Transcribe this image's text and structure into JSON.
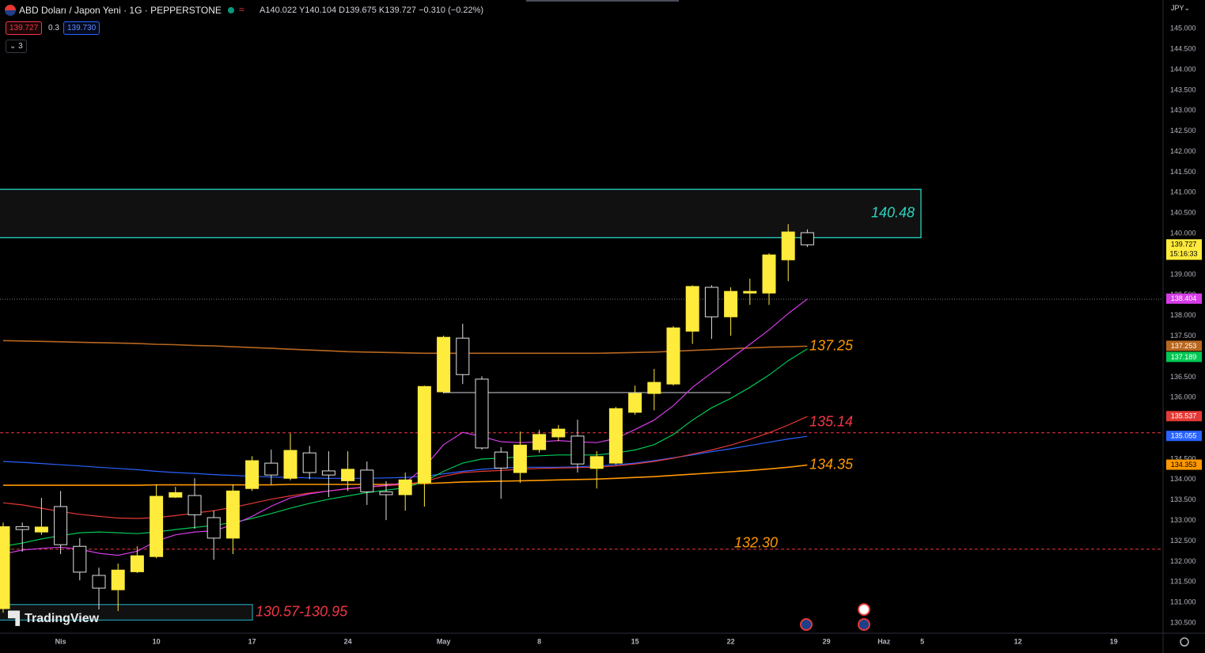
{
  "chart_data": {
    "type": "candlestick",
    "categories": [
      null,
      null,
      null,
      "Nis",
      null,
      null,
      null,
      null,
      "10",
      null,
      null,
      null,
      null,
      "17",
      null,
      null,
      null,
      null,
      "24",
      null,
      null,
      null,
      null,
      "May",
      null,
      null,
      null,
      null,
      "8",
      null,
      null,
      null,
      null,
      "15",
      null,
      null,
      null,
      null,
      "22",
      null,
      null,
      null,
      null,
      "29",
      null,
      null,
      "Haz",
      null,
      "5",
      null,
      null,
      null,
      null,
      "12",
      null,
      null,
      null,
      null,
      "19"
    ],
    "open": [
      130.85,
      132.85,
      132.72,
      133.34,
      132.37,
      131.66,
      131.31,
      131.75,
      132.12,
      133.57,
      133.61,
      133.07,
      132.57,
      133.78,
      134.4,
      134.03,
      134.65,
      134.21,
      133.97,
      134.23,
      133.7,
      133.63,
      133.92,
      136.14,
      137.45,
      136.45,
      134.67,
      134.17,
      134.73,
      135.04,
      135.06,
      134.27,
      134.4,
      135.64,
      136.1,
      136.33,
      137.62,
      138.69,
      137.97,
      138.55,
      138.55,
      139.36,
      140.022,
      null,
      null,
      null,
      null,
      null,
      null,
      null,
      null,
      null,
      null,
      null,
      null,
      null,
      null,
      null,
      null
    ],
    "high": [
      132.95,
      132.95,
      133.55,
      133.72,
      132.57,
      131.85,
      131.95,
      132.37,
      133.88,
      133.82,
      134.03,
      133.24,
      133.88,
      134.57,
      134.73,
      135.13,
      134.82,
      134.69,
      134.69,
      134.44,
      133.96,
      134.17,
      136.29,
      137.51,
      137.8,
      136.52,
      134.79,
      135.17,
      135.21,
      135.33,
      135.46,
      134.69,
      135.77,
      136.29,
      136.7,
      137.74,
      138.74,
      138.74,
      138.69,
      138.9,
      139.52,
      140.23,
      140.104,
      null,
      null,
      null,
      null,
      null,
      null,
      null,
      null,
      null,
      null,
      null,
      null,
      null,
      null,
      null,
      null
    ],
    "low": [
      130.75,
      132.24,
      132.65,
      132.18,
      131.54,
      130.83,
      130.79,
      131.72,
      132.08,
      133.55,
      132.8,
      132.04,
      132.18,
      133.72,
      133.88,
      133.98,
      134.01,
      133.57,
      133.72,
      133.38,
      133.01,
      133.24,
      133.34,
      136.1,
      136.33,
      134.73,
      133.53,
      133.92,
      134.65,
      134.94,
      134.17,
      133.78,
      134.36,
      135.58,
      135.69,
      136.29,
      137.31,
      137.43,
      137.51,
      138.26,
      138.26,
      138.84,
      139.675,
      null,
      null,
      null,
      null,
      null,
      null,
      null,
      null,
      null,
      null,
      null,
      null,
      null,
      null,
      null,
      null
    ],
    "close": [
      132.85,
      132.78,
      132.84,
      132.41,
      131.74,
      131.35,
      131.79,
      132.14,
      133.59,
      133.68,
      133.14,
      132.57,
      133.72,
      134.46,
      134.11,
      134.71,
      134.17,
      134.11,
      134.25,
      133.7,
      133.63,
      133.99,
      136.27,
      137.47,
      136.56,
      134.77,
      134.28,
      134.84,
      135.1,
      135.23,
      134.38,
      134.56,
      135.73,
      136.1,
      136.37,
      137.7,
      138.71,
      137.97,
      138.59,
      138.59,
      139.48,
      140.04,
      139.727,
      null,
      null,
      null,
      null,
      null,
      null,
      null,
      null,
      null,
      null,
      null,
      null,
      null,
      null,
      null,
      null
    ],
    "up_color": "#ffeb3b",
    "down_color": "#000000",
    "down_border": "#e0e0e0",
    "last_label": "139.727",
    "countdown": "15:16:33",
    "lines": [
      {
        "color": "#b8671f",
        "badge": "137.253",
        "values": [
          137.39,
          137.38,
          137.37,
          137.36,
          137.35,
          137.34,
          137.33,
          137.32,
          137.3,
          137.29,
          137.27,
          137.26,
          137.24,
          137.22,
          137.2,
          137.18,
          137.16,
          137.14,
          137.12,
          137.11,
          137.1,
          137.09,
          137.08,
          137.08,
          137.08,
          137.08,
          137.08,
          137.08,
          137.08,
          137.08,
          137.08,
          137.08,
          137.09,
          137.1,
          137.11,
          137.13,
          137.15,
          137.17,
          137.19,
          137.21,
          137.23,
          137.24,
          137.253,
          null,
          null,
          null,
          null,
          null,
          null,
          null,
          null,
          null,
          null,
          null,
          null,
          null,
          null,
          null,
          null
        ]
      },
      {
        "color": "#ff9800",
        "badge": "134.353",
        "values": [
          133.86,
          133.86,
          133.86,
          133.86,
          133.86,
          133.86,
          133.86,
          133.86,
          133.87,
          133.87,
          133.87,
          133.87,
          133.87,
          133.87,
          133.87,
          133.88,
          133.88,
          133.88,
          133.88,
          133.88,
          133.88,
          133.89,
          133.9,
          133.92,
          133.94,
          133.95,
          133.96,
          133.97,
          133.98,
          133.99,
          134.0,
          134.01,
          134.03,
          134.05,
          134.07,
          134.1,
          134.13,
          134.16,
          134.19,
          134.22,
          134.26,
          134.3,
          134.353,
          null,
          null,
          null,
          null,
          null,
          null,
          null,
          null,
          null,
          null,
          null,
          null,
          null,
          null,
          null,
          null
        ]
      },
      {
        "color": "#2962ff",
        "badge": "135.055",
        "values": [
          134.44,
          134.42,
          134.39,
          134.36,
          134.33,
          134.3,
          134.27,
          134.24,
          134.2,
          134.17,
          134.15,
          134.12,
          134.1,
          134.08,
          134.06,
          134.05,
          134.04,
          134.03,
          134.03,
          134.03,
          134.04,
          134.05,
          134.08,
          134.14,
          134.2,
          134.25,
          134.28,
          134.3,
          134.3,
          134.3,
          134.31,
          134.33,
          134.36,
          134.4,
          134.46,
          134.53,
          134.6,
          134.68,
          134.75,
          134.83,
          134.91,
          134.99,
          135.055,
          null,
          null,
          null,
          null,
          null,
          null,
          null,
          null,
          null,
          null,
          null,
          null,
          null,
          null,
          null,
          null
        ]
      },
      {
        "color": "#e53935",
        "badge": "135.537",
        "values": [
          133.43,
          133.38,
          133.3,
          133.22,
          133.15,
          133.1,
          133.06,
          133.05,
          133.07,
          133.12,
          133.18,
          133.24,
          133.32,
          133.42,
          133.52,
          133.6,
          133.67,
          133.72,
          133.77,
          133.81,
          133.85,
          133.88,
          133.95,
          134.08,
          134.17,
          134.2,
          134.22,
          134.25,
          134.27,
          134.28,
          134.29,
          134.3,
          134.33,
          134.38,
          134.44,
          134.52,
          134.62,
          134.72,
          134.84,
          134.98,
          135.14,
          135.33,
          135.537,
          null,
          null,
          null,
          null,
          null,
          null,
          null,
          null,
          null,
          null,
          null,
          null,
          null,
          null,
          null,
          null
        ]
      },
      {
        "color": "#00c853",
        "badge": "137.189",
        "values": [
          132.37,
          132.45,
          132.55,
          132.63,
          132.7,
          132.72,
          132.7,
          132.68,
          132.72,
          132.78,
          132.83,
          132.88,
          132.95,
          133.05,
          133.17,
          133.3,
          133.42,
          133.52,
          133.6,
          133.68,
          133.74,
          133.8,
          133.95,
          134.2,
          134.4,
          134.5,
          134.52,
          134.55,
          134.58,
          134.6,
          134.6,
          134.6,
          134.65,
          134.72,
          134.85,
          135.1,
          135.45,
          135.75,
          135.98,
          136.25,
          136.55,
          136.9,
          137.189,
          null,
          null,
          null,
          null,
          null,
          null,
          null,
          null,
          null,
          null,
          null,
          null,
          null,
          null,
          null,
          null
        ]
      },
      {
        "color": "#d53ce8",
        "badge": "138.404",
        "values": [
          132.18,
          132.28,
          132.32,
          132.35,
          132.3,
          132.2,
          132.15,
          132.25,
          132.5,
          132.65,
          132.72,
          132.75,
          132.9,
          133.1,
          133.35,
          133.55,
          133.65,
          133.72,
          133.78,
          133.82,
          133.86,
          133.92,
          134.3,
          134.85,
          135.15,
          135.05,
          134.92,
          134.9,
          134.92,
          134.95,
          134.92,
          134.9,
          135.0,
          135.22,
          135.45,
          135.8,
          136.25,
          136.6,
          136.95,
          137.3,
          137.65,
          138.05,
          138.404,
          null,
          null,
          null,
          null,
          null,
          null,
          null,
          null,
          null,
          null,
          null,
          null,
          null,
          null,
          null,
          null
        ]
      }
    ],
    "zones": [
      {
        "label": "140.48",
        "low": 139.9,
        "high": 141.08,
        "color": "#2ad6c0",
        "label_color": "#2ad6c0"
      },
      {
        "label": "130.57-130.95",
        "low": 130.57,
        "high": 130.95,
        "color": "#1f8fa3",
        "label_color": "#f23645"
      }
    ],
    "hlines": [
      {
        "value": 135.14,
        "label": "135.14",
        "color": "#f23645",
        "style": "dashed",
        "label_color": "#f23645"
      },
      {
        "value": 132.3,
        "label": "132.30",
        "color": "#f23645",
        "style": "dashed",
        "label_color": "#ff9800"
      },
      {
        "value": 138.4,
        "color": "#787b86",
        "style": "dotted"
      }
    ],
    "segment": {
      "value": 136.12,
      "color": "#d1d4dc"
    },
    "annotations": [
      {
        "text": "137.25",
        "value": 137.25,
        "color": "#ff9800"
      },
      {
        "text": "134.35",
        "value": 134.35,
        "color": "#ff9800"
      }
    ],
    "ylim": [
      130.25,
      145.7
    ],
    "yticks": [
      {
        "value": 130.5,
        "label": "130.500"
      },
      {
        "value": 131,
        "label": "131.000"
      },
      {
        "value": 131.5,
        "label": "131.500"
      },
      {
        "value": 132,
        "label": "132.000"
      },
      {
        "value": 132.5,
        "label": "132.500"
      },
      {
        "value": 133,
        "label": "133.000"
      },
      {
        "value": 133.5,
        "label": "133.500"
      },
      {
        "value": 134,
        "label": "134.000"
      },
      {
        "value": 134.5,
        "label": "134.500"
      },
      {
        "value": 135,
        "label": "135.000"
      },
      {
        "value": 135.5,
        "label": "135.500"
      },
      {
        "value": 136,
        "label": "136.000"
      },
      {
        "value": 136.5,
        "label": "136.500"
      },
      {
        "value": 137,
        "label": "137.000"
      },
      {
        "value": 137.5,
        "label": "137.500"
      },
      {
        "value": 138,
        "label": "138.000"
      },
      {
        "value": 138.5,
        "label": "138.500"
      },
      {
        "value": 139,
        "label": "139.000"
      },
      {
        "value": 139.5,
        "label": "139.500"
      },
      {
        "value": 140,
        "label": "140.000"
      },
      {
        "value": 140.5,
        "label": "140.500"
      },
      {
        "value": 141,
        "label": "141.000"
      },
      {
        "value": 141.5,
        "label": "141.500"
      },
      {
        "value": 142,
        "label": "142.000"
      },
      {
        "value": 142.5,
        "label": "142.500"
      },
      {
        "value": 143,
        "label": "143.000"
      },
      {
        "value": 143.5,
        "label": "143.500"
      },
      {
        "value": 144,
        "label": "144.000"
      },
      {
        "value": 144.5,
        "label": "144.500"
      },
      {
        "value": 145,
        "label": "145.000"
      }
    ],
    "currency": "JPY"
  },
  "header": {
    "symbol": "ABD Doları / Japon Yeni · 1G · PEPPERSTONE",
    "ohlc": [
      "A140.022",
      "Y140.104",
      "D139.675",
      "K139.727"
    ],
    "change": "−0.310 (−0.22%)",
    "sell": "139.727",
    "spread": "0.3",
    "buy": "139.730",
    "indicators": "3"
  },
  "branding": "TradingView"
}
